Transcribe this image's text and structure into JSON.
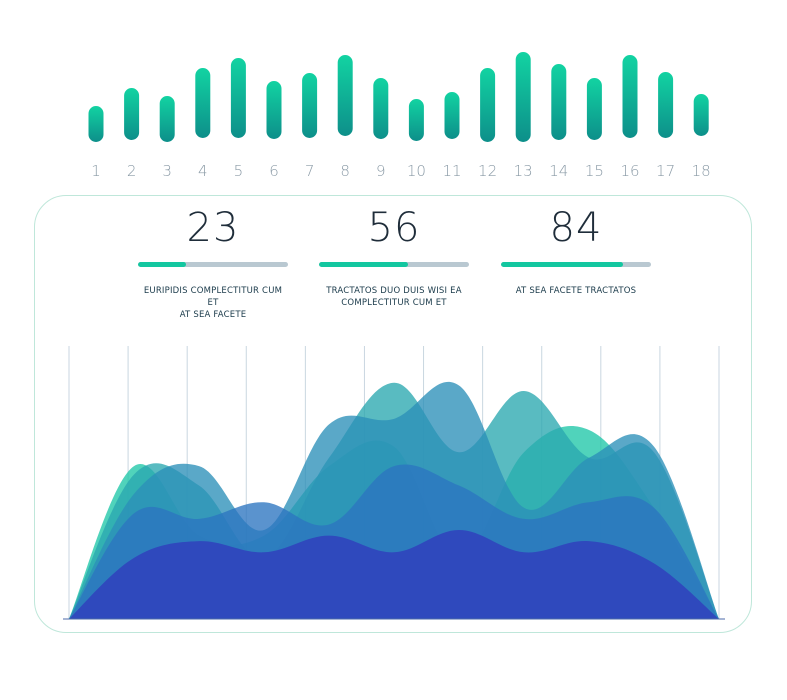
{
  "chart_data": [
    {
      "type": "bar",
      "categories": [
        "1",
        "2",
        "3",
        "4",
        "5",
        "6",
        "7",
        "8",
        "9",
        "10",
        "11",
        "12",
        "13",
        "14",
        "15",
        "16",
        "17",
        "18"
      ],
      "ranges": [
        [
          106,
          142
        ],
        [
          88,
          140
        ],
        [
          96,
          142
        ],
        [
          68,
          138
        ],
        [
          58,
          138
        ],
        [
          81,
          139
        ],
        [
          73,
          138
        ],
        [
          55,
          136
        ],
        [
          78,
          139
        ],
        [
          99,
          141
        ],
        [
          92,
          139
        ],
        [
          68,
          142
        ],
        [
          52,
          142
        ],
        [
          64,
          140
        ],
        [
          78,
          140
        ],
        [
          55,
          138
        ],
        [
          72,
          138
        ],
        [
          94,
          136
        ]
      ],
      "colors": {
        "top": "#12d3a2",
        "bottom": "#0d8f8a"
      }
    },
    {
      "type": "area",
      "x": [
        0,
        1,
        2,
        3,
        4,
        5,
        6,
        7,
        8,
        9,
        10
      ],
      "series": [
        {
          "values": [
            0,
            55,
            30,
            30,
            55,
            62,
            22,
            60,
            68,
            40,
            0
          ],
          "color": "#1fc6a8"
        },
        {
          "values": [
            0,
            52,
            48,
            22,
            58,
            85,
            60,
            82,
            58,
            60,
            0
          ],
          "color": "#2aa8b0"
        },
        {
          "values": [
            0,
            45,
            55,
            32,
            70,
            72,
            84,
            40,
            58,
            62,
            0
          ],
          "color": "#2b8fb9"
        },
        {
          "values": [
            0,
            38,
            36,
            42,
            34,
            55,
            48,
            36,
            42,
            40,
            0
          ],
          "color": "#2c74c0"
        },
        {
          "values": [
            0,
            22,
            28,
            24,
            30,
            24,
            32,
            24,
            28,
            20,
            0
          ],
          "color": "#2f47bd"
        }
      ],
      "colors": {
        "grid": "#c9d6e0",
        "baseline": "#4b6aa8"
      }
    }
  ],
  "stats": [
    {
      "value": "23",
      "progress": 0.32,
      "caption_line1": "EURIPIDIS COMPLECTITUR CUM ET",
      "caption_line2": "AT SEA FACETE"
    },
    {
      "value": "56",
      "progress": 0.59,
      "caption_line1": "TRACTATOS DUO DUIS WISI EA",
      "caption_line2": "COMPLECTITUR CUM ET"
    },
    {
      "value": "84",
      "progress": 0.81,
      "caption_line1": "AT SEA FACETE TRACTATOS",
      "caption_line2": ""
    }
  ]
}
